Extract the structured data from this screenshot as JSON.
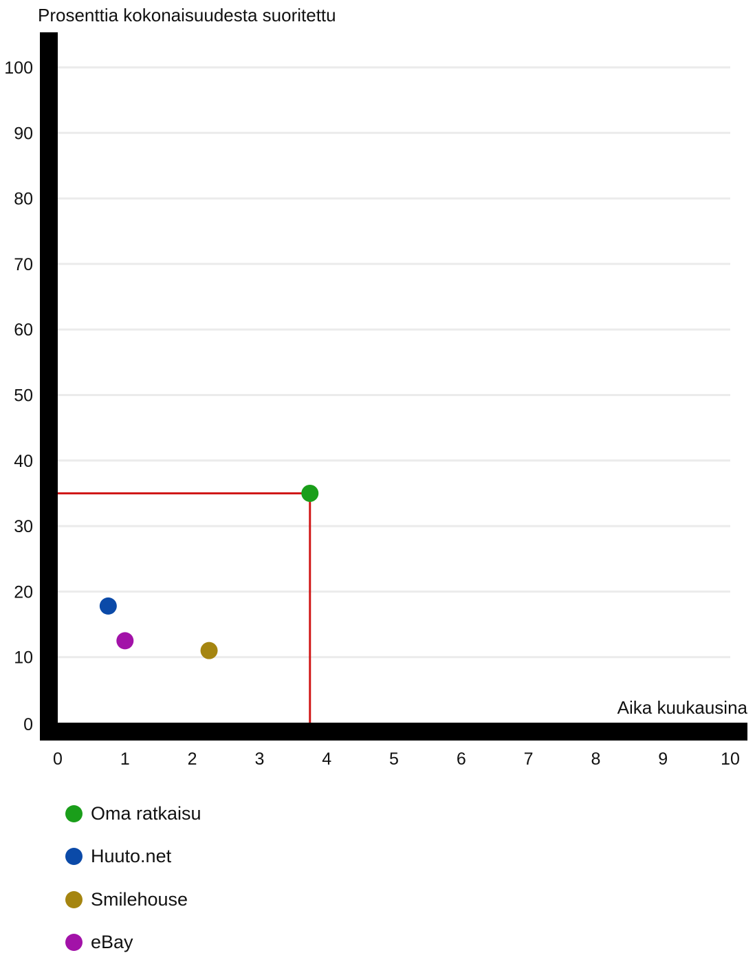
{
  "chart_data": {
    "type": "scatter",
    "ylabel": "Prosenttia kokonaisuudesta suoritettu",
    "xlabel": "Aika kuukausina",
    "xlim": [
      0,
      10
    ],
    "ylim": [
      0,
      100
    ],
    "x_ticks": [
      "0",
      "1",
      "2",
      "3",
      "4",
      "5",
      "6",
      "7",
      "8",
      "9",
      "10"
    ],
    "y_ticks": [
      "0",
      "10",
      "20",
      "30",
      "40",
      "50",
      "60",
      "70",
      "80",
      "90",
      "100"
    ],
    "grid": "horizontal",
    "legend_position": "bottom-left",
    "series": [
      {
        "name": "Oma ratkaisu",
        "color": "#1a9e1a",
        "x": 3.75,
        "y": 35
      },
      {
        "name": "Huuto.net",
        "color": "#0b4aa8",
        "x": 0.75,
        "y": 17.8
      },
      {
        "name": "Smilehouse",
        "color": "#a58510",
        "x": 2.25,
        "y": 11
      },
      {
        "name": "eBay",
        "color": "#a212a8",
        "x": 1,
        "y": 12.5
      }
    ],
    "reference_lines": {
      "color": "#d01818",
      "x": 3.75,
      "y": 35
    }
  }
}
